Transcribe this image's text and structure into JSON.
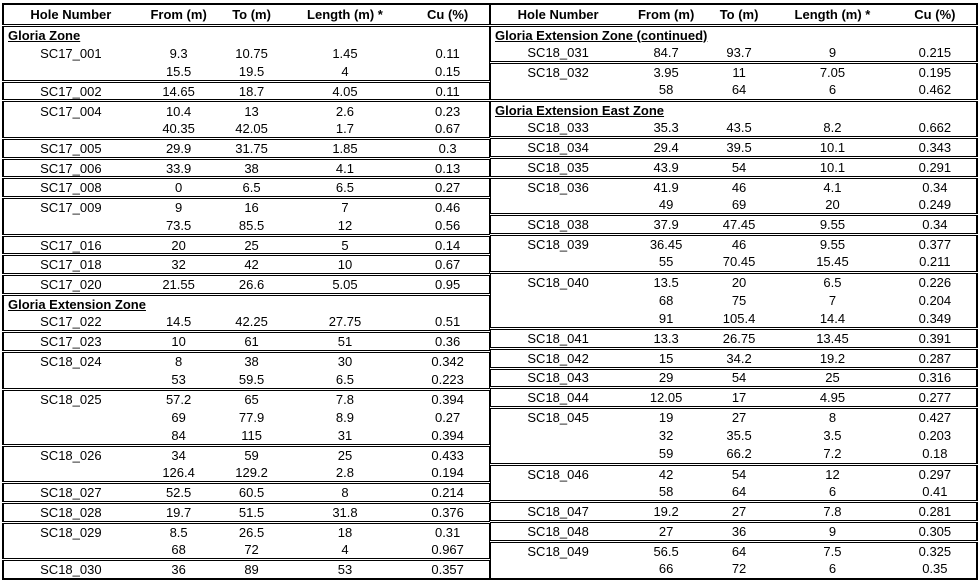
{
  "header": {
    "columns": [
      "Hole Number",
      "From (m)",
      "To (m)",
      "Length (m) *",
      "Cu (%)"
    ]
  },
  "tables": [
    {
      "name": "left",
      "rows": [
        {
          "section": "Gloria Zone"
        },
        {
          "hole": "SC17_001",
          "from": "9.3",
          "to": "10.75",
          "length": "1.45",
          "cu": "0.11"
        },
        {
          "hole": "",
          "from": "15.5",
          "to": "19.5",
          "length": "4",
          "cu": "0.15"
        },
        {
          "hole": "SC17_002",
          "from": "14.65",
          "to": "18.7",
          "length": "4.05",
          "cu": "0.11"
        },
        {
          "hole": "SC17_004",
          "from": "10.4",
          "to": "13",
          "length": "2.6",
          "cu": "0.23"
        },
        {
          "hole": "",
          "from": "40.35",
          "to": "42.05",
          "length": "1.7",
          "cu": "0.67"
        },
        {
          "hole": "SC17_005",
          "from": "29.9",
          "to": "31.75",
          "length": "1.85",
          "cu": "0.3"
        },
        {
          "hole": "SC17_006",
          "from": "33.9",
          "to": "38",
          "length": "4.1",
          "cu": "0.13"
        },
        {
          "hole": "SC17_008",
          "from": "0",
          "to": "6.5",
          "length": "6.5",
          "cu": "0.27"
        },
        {
          "hole": "SC17_009",
          "from": "9",
          "to": "16",
          "length": "7",
          "cu": "0.46"
        },
        {
          "hole": "",
          "from": "73.5",
          "to": "85.5",
          "length": "12",
          "cu": "0.56"
        },
        {
          "hole": "SC17_016",
          "from": "20",
          "to": "25",
          "length": "5",
          "cu": "0.14"
        },
        {
          "hole": "SC17_018",
          "from": "32",
          "to": "42",
          "length": "10",
          "cu": "0.67"
        },
        {
          "hole": "SC17_020",
          "from": "21.55",
          "to": "26.6",
          "length": "5.05",
          "cu": "0.95"
        },
        {
          "section": "Gloria Extension Zone"
        },
        {
          "hole": "SC17_022",
          "from": "14.5",
          "to": "42.25",
          "length": "27.75",
          "cu": "0.51"
        },
        {
          "hole": "SC17_023",
          "from": "10",
          "to": "61",
          "length": "51",
          "cu": "0.36"
        },
        {
          "hole": "SC18_024",
          "from": "8",
          "to": "38",
          "length": "30",
          "cu": "0.342"
        },
        {
          "hole": "",
          "from": "53",
          "to": "59.5",
          "length": "6.5",
          "cu": "0.223"
        },
        {
          "hole": "SC18_025",
          "from": "57.2",
          "to": "65",
          "length": "7.8",
          "cu": "0.394"
        },
        {
          "hole": "",
          "from": "69",
          "to": "77.9",
          "length": "8.9",
          "cu": "0.27"
        },
        {
          "hole": "",
          "from": "84",
          "to": "115",
          "length": "31",
          "cu": "0.394"
        },
        {
          "hole": "SC18_026",
          "from": "34",
          "to": "59",
          "length": "25",
          "cu": "0.433"
        },
        {
          "hole": "",
          "from": "126.4",
          "to": "129.2",
          "length": "2.8",
          "cu": "0.194"
        },
        {
          "hole": "SC18_027",
          "from": "52.5",
          "to": "60.5",
          "length": "8",
          "cu": "0.214"
        },
        {
          "hole": "SC18_028",
          "from": "19.7",
          "to": "51.5",
          "length": "31.8",
          "cu": "0.376"
        },
        {
          "hole": "SC18_029",
          "from": "8.5",
          "to": "26.5",
          "length": "18",
          "cu": "0.31"
        },
        {
          "hole": "",
          "from": "68",
          "to": "72",
          "length": "4",
          "cu": "0.967"
        },
        {
          "hole": "SC18_030",
          "from": "36",
          "to": "89",
          "length": "53",
          "cu": "0.357"
        }
      ]
    },
    {
      "name": "right",
      "rows": [
        {
          "section": "Gloria Extension Zone (continued)"
        },
        {
          "hole": "SC18_031",
          "from": "84.7",
          "to": "93.7",
          "length": "9",
          "cu": "0.215"
        },
        {
          "hole": "SC18_032",
          "from": "3.95",
          "to": "11",
          "length": "7.05",
          "cu": "0.195"
        },
        {
          "hole": "",
          "from": "58",
          "to": "64",
          "length": "6",
          "cu": "0.462"
        },
        {
          "section": "Gloria Extension East Zone"
        },
        {
          "hole": "SC18_033",
          "from": "35.3",
          "to": "43.5",
          "length": "8.2",
          "cu": "0.662"
        },
        {
          "hole": "SC18_034",
          "from": "29.4",
          "to": "39.5",
          "length": "10.1",
          "cu": "0.343"
        },
        {
          "hole": "SC18_035",
          "from": "43.9",
          "to": "54",
          "length": "10.1",
          "cu": "0.291"
        },
        {
          "hole": "SC18_036",
          "from": "41.9",
          "to": "46",
          "length": "4.1",
          "cu": "0.34"
        },
        {
          "hole": "",
          "from": "49",
          "to": "69",
          "length": "20",
          "cu": "0.249"
        },
        {
          "hole": "SC18_038",
          "from": "37.9",
          "to": "47.45",
          "length": "9.55",
          "cu": "0.34"
        },
        {
          "hole": "SC18_039",
          "from": "36.45",
          "to": "46",
          "length": "9.55",
          "cu": "0.377"
        },
        {
          "hole": "",
          "from": "55",
          "to": "70.45",
          "length": "15.45",
          "cu": "0.211"
        },
        {
          "hole": "SC18_040",
          "from": "13.5",
          "to": "20",
          "length": "6.5",
          "cu": "0.226"
        },
        {
          "hole": "",
          "from": "68",
          "to": "75",
          "length": "7",
          "cu": "0.204"
        },
        {
          "hole": "",
          "from": "91",
          "to": "105.4",
          "length": "14.4",
          "cu": "0.349"
        },
        {
          "hole": "SC18_041",
          "from": "13.3",
          "to": "26.75",
          "length": "13.45",
          "cu": "0.391"
        },
        {
          "hole": "SC18_042",
          "from": "15",
          "to": "34.2",
          "length": "19.2",
          "cu": "0.287"
        },
        {
          "hole": "SC18_043",
          "from": "29",
          "to": "54",
          "length": "25",
          "cu": "0.316"
        },
        {
          "hole": "SC18_044",
          "from": "12.05",
          "to": "17",
          "length": "4.95",
          "cu": "0.277"
        },
        {
          "hole": "SC18_045",
          "from": "19",
          "to": "27",
          "length": "8",
          "cu": "0.427"
        },
        {
          "hole": "",
          "from": "32",
          "to": "35.5",
          "length": "3.5",
          "cu": "0.203"
        },
        {
          "hole": "",
          "from": "59",
          "to": "66.2",
          "length": "7.2",
          "cu": "0.18"
        },
        {
          "hole": "SC18_046",
          "from": "42",
          "to": "54",
          "length": "12",
          "cu": "0.297"
        },
        {
          "hole": "",
          "from": "58",
          "to": "64",
          "length": "6",
          "cu": "0.41"
        },
        {
          "hole": "SC18_047",
          "from": "19.2",
          "to": "27",
          "length": "7.8",
          "cu": "0.281"
        },
        {
          "hole": "SC18_048",
          "from": "27",
          "to": "36",
          "length": "9",
          "cu": "0.305"
        },
        {
          "hole": "SC18_049",
          "from": "56.5",
          "to": "64",
          "length": "7.5",
          "cu": "0.325"
        },
        {
          "hole": "",
          "from": "66",
          "to": "72",
          "length": "6",
          "cu": "0.35"
        }
      ]
    }
  ],
  "colors": {
    "text": "#000000",
    "border": "#000000",
    "background": "#ffffff"
  }
}
